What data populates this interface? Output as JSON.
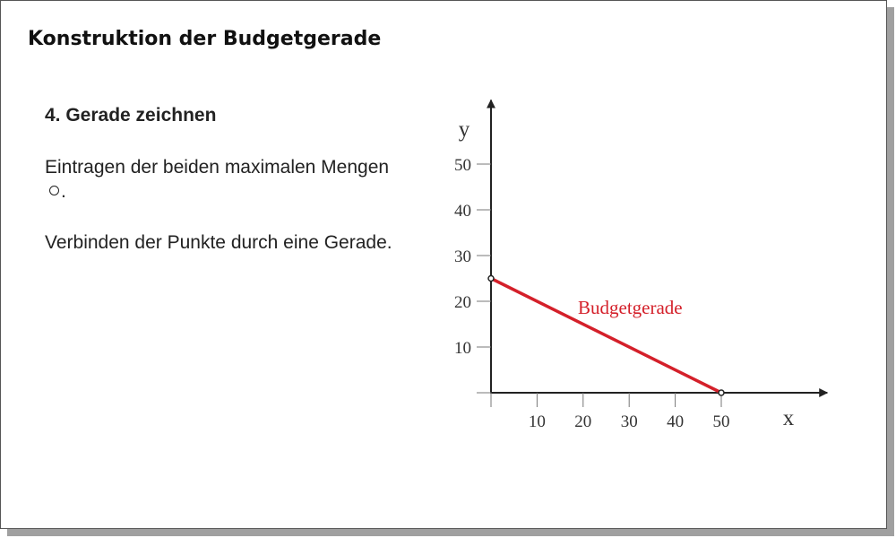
{
  "slide": {
    "title": "Konstruktion der Budgetgerade",
    "heading": "4. Gerade zeichnen",
    "paragraph1_before": "Eintragen der beiden maximalen Mengen",
    "paragraph1_after": ".",
    "paragraph1_icon": "hollow-circle-point-icon",
    "paragraph2": "Verbinden der Punkte durch eine Gerade."
  },
  "chart_data": {
    "type": "line",
    "xlabel": "x",
    "ylabel": "y",
    "x_ticks": [
      10,
      20,
      30,
      40,
      50
    ],
    "y_ticks": [
      10,
      20,
      30,
      40,
      50
    ],
    "xlim": [
      0,
      73
    ],
    "ylim": [
      0,
      64
    ],
    "grid": false,
    "series": [
      {
        "name": "Budgetgerade",
        "color": "#d4202a",
        "points": [
          {
            "x": 0,
            "y": 25
          },
          {
            "x": 50,
            "y": 0
          }
        ]
      }
    ],
    "endpoint_markers": [
      {
        "x": 0,
        "y": 25
      },
      {
        "x": 50,
        "y": 0
      }
    ]
  }
}
